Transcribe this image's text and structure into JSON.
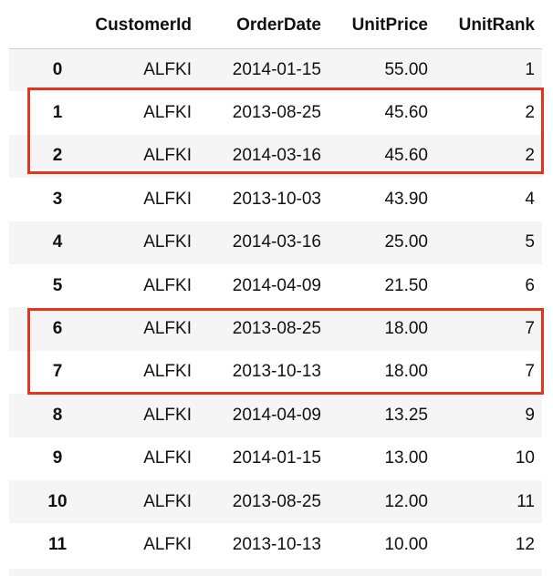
{
  "table": {
    "columns": [
      "",
      "CustomerId",
      "OrderDate",
      "UnitPrice",
      "UnitRank"
    ],
    "rows": [
      {
        "index": "0",
        "CustomerId": "ALFKI",
        "OrderDate": "2014-01-15",
        "UnitPrice": "55.00",
        "UnitRank": "1"
      },
      {
        "index": "1",
        "CustomerId": "ALFKI",
        "OrderDate": "2013-08-25",
        "UnitPrice": "45.60",
        "UnitRank": "2"
      },
      {
        "index": "2",
        "CustomerId": "ALFKI",
        "OrderDate": "2014-03-16",
        "UnitPrice": "45.60",
        "UnitRank": "2"
      },
      {
        "index": "3",
        "CustomerId": "ALFKI",
        "OrderDate": "2013-10-03",
        "UnitPrice": "43.90",
        "UnitRank": "4"
      },
      {
        "index": "4",
        "CustomerId": "ALFKI",
        "OrderDate": "2014-03-16",
        "UnitPrice": "25.00",
        "UnitRank": "5"
      },
      {
        "index": "5",
        "CustomerId": "ALFKI",
        "OrderDate": "2014-04-09",
        "UnitPrice": "21.50",
        "UnitRank": "6"
      },
      {
        "index": "6",
        "CustomerId": "ALFKI",
        "OrderDate": "2013-08-25",
        "UnitPrice": "18.00",
        "UnitRank": "7"
      },
      {
        "index": "7",
        "CustomerId": "ALFKI",
        "OrderDate": "2013-10-13",
        "UnitPrice": "18.00",
        "UnitRank": "7"
      },
      {
        "index": "8",
        "CustomerId": "ALFKI",
        "OrderDate": "2014-04-09",
        "UnitPrice": "13.25",
        "UnitRank": "9"
      },
      {
        "index": "9",
        "CustomerId": "ALFKI",
        "OrderDate": "2014-01-15",
        "UnitPrice": "13.00",
        "UnitRank": "10"
      },
      {
        "index": "10",
        "CustomerId": "ALFKI",
        "OrderDate": "2013-08-25",
        "UnitPrice": "12.00",
        "UnitRank": "11"
      },
      {
        "index": "11",
        "CustomerId": "ALFKI",
        "OrderDate": "2013-10-13",
        "UnitPrice": "10.00",
        "UnitRank": "12"
      }
    ]
  },
  "highlight_color": "#e2371f",
  "stripe_color": "#f5f5f5"
}
